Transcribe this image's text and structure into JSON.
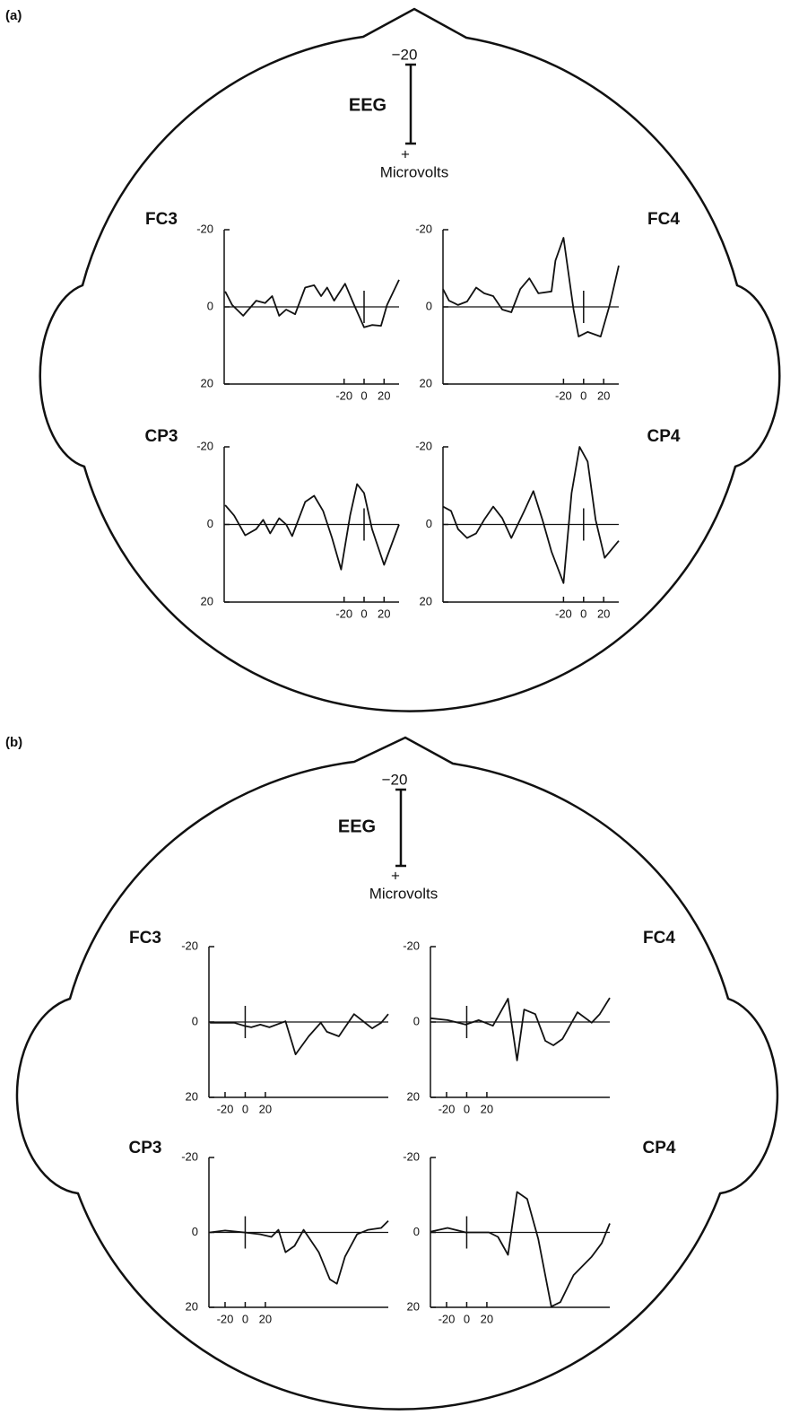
{
  "panels": [
    {
      "label": "(a)",
      "scale_title": "EEG",
      "scale_top": "−20",
      "scale_bottom": "+",
      "scale_unit": "Microvolts"
    },
    {
      "label": "(b)",
      "scale_title": "EEG",
      "scale_top": "−20",
      "scale_bottom": "+",
      "scale_unit": "Microvolts"
    }
  ],
  "chart_data": [
    {
      "type": "line",
      "title": "FC3",
      "color": "#111",
      "xlim": [
        -140,
        35
      ],
      "xticks": [
        -20,
        0,
        20
      ],
      "ylim": [
        20,
        -20
      ],
      "yticks": [
        -20,
        0,
        20
      ],
      "x": [
        -139,
        -132,
        -121,
        -108,
        -99,
        -92,
        -85,
        -78,
        -69,
        -59,
        -50,
        -43,
        -37,
        -30,
        -19,
        -10,
        0,
        8,
        17,
        23,
        35
      ],
      "values": [
        -4,
        -0.5,
        2.3,
        -1.6,
        -1,
        -2.8,
        2.3,
        0.7,
        1.9,
        -5,
        -5.6,
        -2.8,
        -5,
        -1.6,
        -6,
        -0.5,
        5.3,
        4.7,
        4.9,
        -0.5,
        -7
      ]
    },
    {
      "type": "line",
      "title": "FC4",
      "color": "#111",
      "xlim": [
        -140,
        35
      ],
      "xticks": [
        -20,
        0,
        20
      ],
      "ylim": [
        20,
        -20
      ],
      "yticks": [
        -20,
        0,
        20
      ],
      "x": [
        -140,
        -134,
        -125,
        -116,
        -107,
        -99,
        -90,
        -81,
        -72,
        -63,
        -54,
        -45,
        -32,
        -28,
        -20,
        -10,
        -5,
        4,
        17,
        26,
        35
      ],
      "values": [
        -4.6,
        -1.6,
        -0.5,
        -1.4,
        -5,
        -3.5,
        -2.8,
        0.7,
        1.4,
        -4.6,
        -7.4,
        -3.5,
        -4,
        -12,
        -17.9,
        0.7,
        7.7,
        6.5,
        7.7,
        -0.5,
        -10.7
      ]
    },
    {
      "type": "line",
      "title": "CP3",
      "color": "#111",
      "xlim": [
        -140,
        35
      ],
      "xticks": [
        -20,
        0,
        20
      ],
      "ylim": [
        20,
        -20
      ],
      "yticks": [
        -20,
        0,
        20
      ],
      "x": [
        -139,
        -130,
        -119,
        -108,
        -101,
        -94,
        -85,
        -78,
        -72,
        -59,
        -50,
        -41,
        -32,
        -23,
        -14,
        -7,
        0,
        8,
        20,
        35
      ],
      "values": [
        -5,
        -2.3,
        2.8,
        1.2,
        -1.2,
        2.3,
        -1.6,
        0,
        3,
        -5.8,
        -7.4,
        -3.5,
        3.5,
        11.6,
        -2.3,
        -10.4,
        -8.1,
        1.2,
        10.4,
        0
      ]
    },
    {
      "type": "line",
      "title": "CP4",
      "color": "#111",
      "xlim": [
        -140,
        35
      ],
      "xticks": [
        -20,
        0,
        20
      ],
      "ylim": [
        20,
        -20
      ],
      "yticks": [
        -20,
        0,
        20
      ],
      "x": [
        -140,
        -132,
        -125,
        -116,
        -107,
        -99,
        -90,
        -81,
        -72,
        -59,
        -50,
        -41,
        -32,
        -20,
        -12,
        -4,
        4,
        12,
        21,
        35
      ],
      "values": [
        -4.6,
        -3.5,
        1.2,
        3.5,
        2.3,
        -1.2,
        -4.6,
        -1.6,
        3.5,
        -3.5,
        -8.6,
        -1.2,
        7,
        15.1,
        -8.1,
        -20,
        -16.2,
        -1.2,
        8.6,
        4.2
      ]
    },
    {
      "type": "line",
      "title": "FC3",
      "color": "#111",
      "xlim": [
        -36,
        142
      ],
      "xticks": [
        -20,
        0,
        20
      ],
      "ylim": [
        20,
        -20
      ],
      "yticks": [
        -20,
        0,
        20
      ],
      "x": [
        -35,
        -11,
        -1,
        6,
        15,
        24,
        40,
        50,
        63,
        75,
        81,
        93,
        108,
        126,
        135,
        142
      ],
      "values": [
        0.2,
        0.2,
        1,
        1.4,
        0.7,
        1.4,
        -0.2,
        8.6,
        3.8,
        0.2,
        2.6,
        3.8,
        -2.1,
        1.7,
        0.2,
        -2.1
      ]
    },
    {
      "type": "line",
      "title": "FC4",
      "color": "#111",
      "xlim": [
        -36,
        142
      ],
      "xticks": [
        -20,
        0,
        20
      ],
      "ylim": [
        20,
        -20
      ],
      "yticks": [
        -20,
        0,
        20
      ],
      "x": [
        -36,
        -19,
        -1,
        12,
        26,
        41,
        50,
        57,
        68,
        78,
        86,
        95,
        110,
        124,
        132,
        142
      ],
      "values": [
        -1,
        -0.5,
        0.7,
        -0.5,
        1,
        -6.2,
        10.2,
        -3.3,
        -2.1,
        5,
        6.2,
        4.5,
        -2.6,
        0.2,
        -2.1,
        -6.4
      ]
    },
    {
      "type": "line",
      "title": "CP3",
      "color": "#111",
      "xlim": [
        -36,
        142
      ],
      "xticks": [
        -20,
        0,
        20
      ],
      "ylim": [
        20,
        -20
      ],
      "yticks": [
        -20,
        0,
        20
      ],
      "x": [
        -35,
        -20,
        -1,
        15,
        26,
        33,
        40,
        49,
        58,
        73,
        84,
        91,
        99,
        111,
        122,
        135,
        142
      ],
      "values": [
        0,
        -0.5,
        0,
        0.5,
        1.2,
        -0.7,
        5.3,
        3.6,
        -0.7,
        5.3,
        12.5,
        13.7,
        6.5,
        0.5,
        -0.7,
        -1.2,
        -3.1
      ]
    },
    {
      "type": "line",
      "title": "CP4",
      "color": "#111",
      "xlim": [
        -36,
        142
      ],
      "xticks": [
        -20,
        0,
        20
      ],
      "ylim": [
        20,
        -20
      ],
      "yticks": [
        -20,
        0,
        20
      ],
      "x": [
        -36,
        -19,
        -1,
        22,
        31,
        41,
        50,
        60,
        71,
        84,
        93,
        106,
        124,
        134,
        142
      ],
      "values": [
        -0.2,
        -1.2,
        0,
        0,
        1.2,
        6,
        -10.8,
        -8.9,
        1.7,
        19.8,
        18.6,
        11.4,
        6.5,
        2.9,
        -2.4
      ]
    }
  ]
}
